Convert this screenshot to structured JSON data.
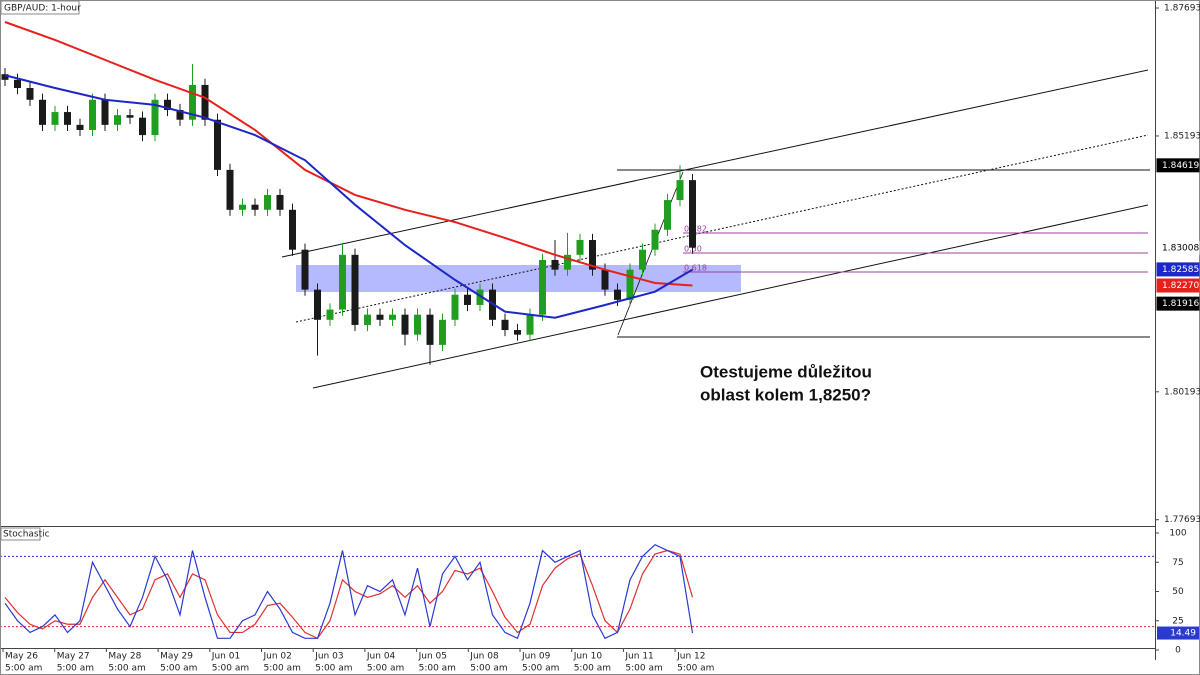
{
  "header": {
    "symbol": "GBP/AUD: 1-hour",
    "indicator": "Stochastic"
  },
  "chart_data": {
    "type": "candlestick",
    "open": [
      1.864,
      1.8629,
      1.8613,
      1.859,
      1.8541,
      1.8566,
      1.8541,
      1.8531,
      1.859,
      1.8541,
      1.856,
      1.8555,
      1.8521,
      1.859,
      1.857,
      1.8551,
      1.8619,
      1.8551,
      1.8453,
      1.8375,
      1.8385,
      1.8375,
      1.8404,
      1.8375,
      1.8297,
      1.8219,
      1.816,
      1.818,
      1.8287,
      1.815,
      1.817,
      1.816,
      1.817,
      1.8131,
      1.817,
      1.8111,
      1.816,
      1.8209,
      1.8189,
      1.8219,
      1.816,
      1.814,
      1.8131,
      1.817,
      1.8277,
      1.8258,
      1.8287,
      1.8316,
      1.8258,
      1.8219,
      1.8199,
      1.8258,
      1.8297,
      1.8336,
      1.8394,
      1.8433
    ],
    "high": [
      1.8652,
      1.8641,
      1.8625,
      1.8602,
      1.8578,
      1.8578,
      1.8553,
      1.8602,
      1.8602,
      1.8572,
      1.8572,
      1.8567,
      1.8602,
      1.8602,
      1.8582,
      1.866,
      1.8631,
      1.8563,
      1.8465,
      1.8397,
      1.8397,
      1.8416,
      1.8416,
      1.8387,
      1.8309,
      1.8231,
      1.8192,
      1.831,
      1.8299,
      1.8182,
      1.8182,
      1.8182,
      1.8182,
      1.8182,
      1.8182,
      1.8172,
      1.8221,
      1.8221,
      1.8231,
      1.8231,
      1.8172,
      1.8152,
      1.8182,
      1.8289,
      1.8316,
      1.833,
      1.8328,
      1.8328,
      1.827,
      1.8231,
      1.827,
      1.8309,
      1.8348,
      1.8406,
      1.8462,
      1.8445
    ],
    "low": [
      1.8617,
      1.8601,
      1.8578,
      1.8529,
      1.8529,
      1.8529,
      1.8519,
      1.8519,
      1.8529,
      1.8529,
      1.8543,
      1.8509,
      1.8509,
      1.8558,
      1.8539,
      1.8539,
      1.8539,
      1.8441,
      1.8363,
      1.8363,
      1.8363,
      1.8363,
      1.8363,
      1.8285,
      1.8207,
      1.809,
      1.8148,
      1.8168,
      1.8138,
      1.8138,
      1.8148,
      1.8148,
      1.811,
      1.8119,
      1.8072,
      1.8099,
      1.8148,
      1.8177,
      1.8177,
      1.8148,
      1.8128,
      1.8119,
      1.8119,
      1.8158,
      1.8246,
      1.8246,
      1.8275,
      1.8246,
      1.8207,
      1.8187,
      1.8187,
      1.8246,
      1.8285,
      1.8324,
      1.8382,
      1.8289
    ],
    "close": [
      1.8629,
      1.8613,
      1.859,
      1.8541,
      1.8566,
      1.8541,
      1.8531,
      1.859,
      1.8541,
      1.856,
      1.8555,
      1.8521,
      1.859,
      1.857,
      1.8551,
      1.8619,
      1.8551,
      1.8453,
      1.8375,
      1.8385,
      1.8375,
      1.8404,
      1.8375,
      1.8297,
      1.8219,
      1.816,
      1.818,
      1.8287,
      1.815,
      1.817,
      1.816,
      1.817,
      1.8131,
      1.817,
      1.8111,
      1.816,
      1.8209,
      1.8189,
      1.8219,
      1.816,
      1.814,
      1.8131,
      1.817,
      1.8277,
      1.8258,
      1.8287,
      1.8316,
      1.8258,
      1.8219,
      1.8199,
      1.8258,
      1.8297,
      1.8336,
      1.8394,
      1.8433,
      1.8301
    ],
    "up_color": "#1f9e1f",
    "down_color": "#1a1a1a",
    "ylim": [
      1.7759,
      1.8785
    ],
    "yticks": [
      1.77693,
      1.80193,
      1.85193,
      1.87693
    ],
    "price_labels": [
      {
        "value": 1.84619,
        "color": "#000000"
      },
      {
        "value": 1.83008,
        "color": "#ffffff"
      },
      {
        "value": 1.82585,
        "color": "#1c27c8"
      },
      {
        "value": 1.8227,
        "label": "1.82270",
        "color": "#e8201c"
      },
      {
        "value": 1.81916,
        "color": "#000000"
      }
    ],
    "moving_averages": [
      {
        "color": "#e8201c",
        "x": [
          0,
          4,
          8,
          12,
          16,
          20,
          24,
          28,
          32,
          36,
          40,
          44,
          48,
          52,
          55
        ],
        "values": [
          1.8742,
          1.8707,
          1.8668,
          1.8629,
          1.8594,
          1.8531,
          1.8453,
          1.8404,
          1.8375,
          1.8351,
          1.832,
          1.8287,
          1.8258,
          1.8232,
          1.8227
        ]
      },
      {
        "color": "#1c27c8",
        "x": [
          0,
          4,
          8,
          12,
          16,
          20,
          24,
          28,
          32,
          36,
          40,
          44,
          48,
          52,
          55
        ],
        "values": [
          1.8638,
          1.8613,
          1.859,
          1.858,
          1.8555,
          1.8521,
          1.8472,
          1.8385,
          1.8306,
          1.8238,
          1.8176,
          1.8164,
          1.8189,
          1.8215,
          1.8258
        ]
      }
    ],
    "x_labels": [
      "May 26",
      "May 27",
      "May 28",
      "May 29",
      "Jun 01",
      "Jun 02",
      "Jun 03",
      "Jun 04",
      "Jun 05",
      "Jun 08",
      "Jun 09",
      "Jun 10",
      "Jun 11",
      "Jun 12"
    ],
    "time_label": "5:00 am",
    "annotation": [
      "Otestujeme důležitou",
      "oblast kolem 1,8250?"
    ],
    "fib_labels": [
      "0.382",
      "0.50",
      "0.618"
    ],
    "stochastic": {
      "ylim": [
        0,
        100
      ],
      "yticks": [
        100,
        75,
        50,
        25,
        0
      ],
      "levels": [
        80,
        20
      ],
      "level_color": "#d03030",
      "level_top_color": "#3030c0",
      "k": {
        "color": "#2a3ad0",
        "values": [
          40,
          25,
          15,
          20,
          30,
          15,
          25,
          75,
          55,
          35,
          20,
          45,
          80,
          60,
          30,
          85,
          45,
          10,
          10,
          25,
          30,
          50,
          35,
          15,
          10,
          10,
          40,
          85,
          30,
          55,
          50,
          60,
          30,
          70,
          20,
          65,
          80,
          60,
          75,
          30,
          15,
          10,
          40,
          85,
          75,
          80,
          85,
          30,
          10,
          15,
          60,
          80,
          90,
          85,
          80,
          14.49
        ]
      },
      "d": {
        "color": "#e03030",
        "values": [
          45,
          32,
          22,
          18,
          25,
          22,
          22,
          45,
          60,
          45,
          30,
          35,
          60,
          65,
          45,
          65,
          60,
          30,
          15,
          15,
          22,
          38,
          40,
          28,
          15,
          10,
          25,
          60,
          50,
          45,
          48,
          55,
          45,
          55,
          40,
          50,
          68,
          65,
          70,
          50,
          28,
          15,
          22,
          55,
          70,
          78,
          82,
          55,
          25,
          15,
          35,
          65,
          82,
          85,
          82,
          45
        ]
      },
      "last_label": 14.49
    }
  }
}
